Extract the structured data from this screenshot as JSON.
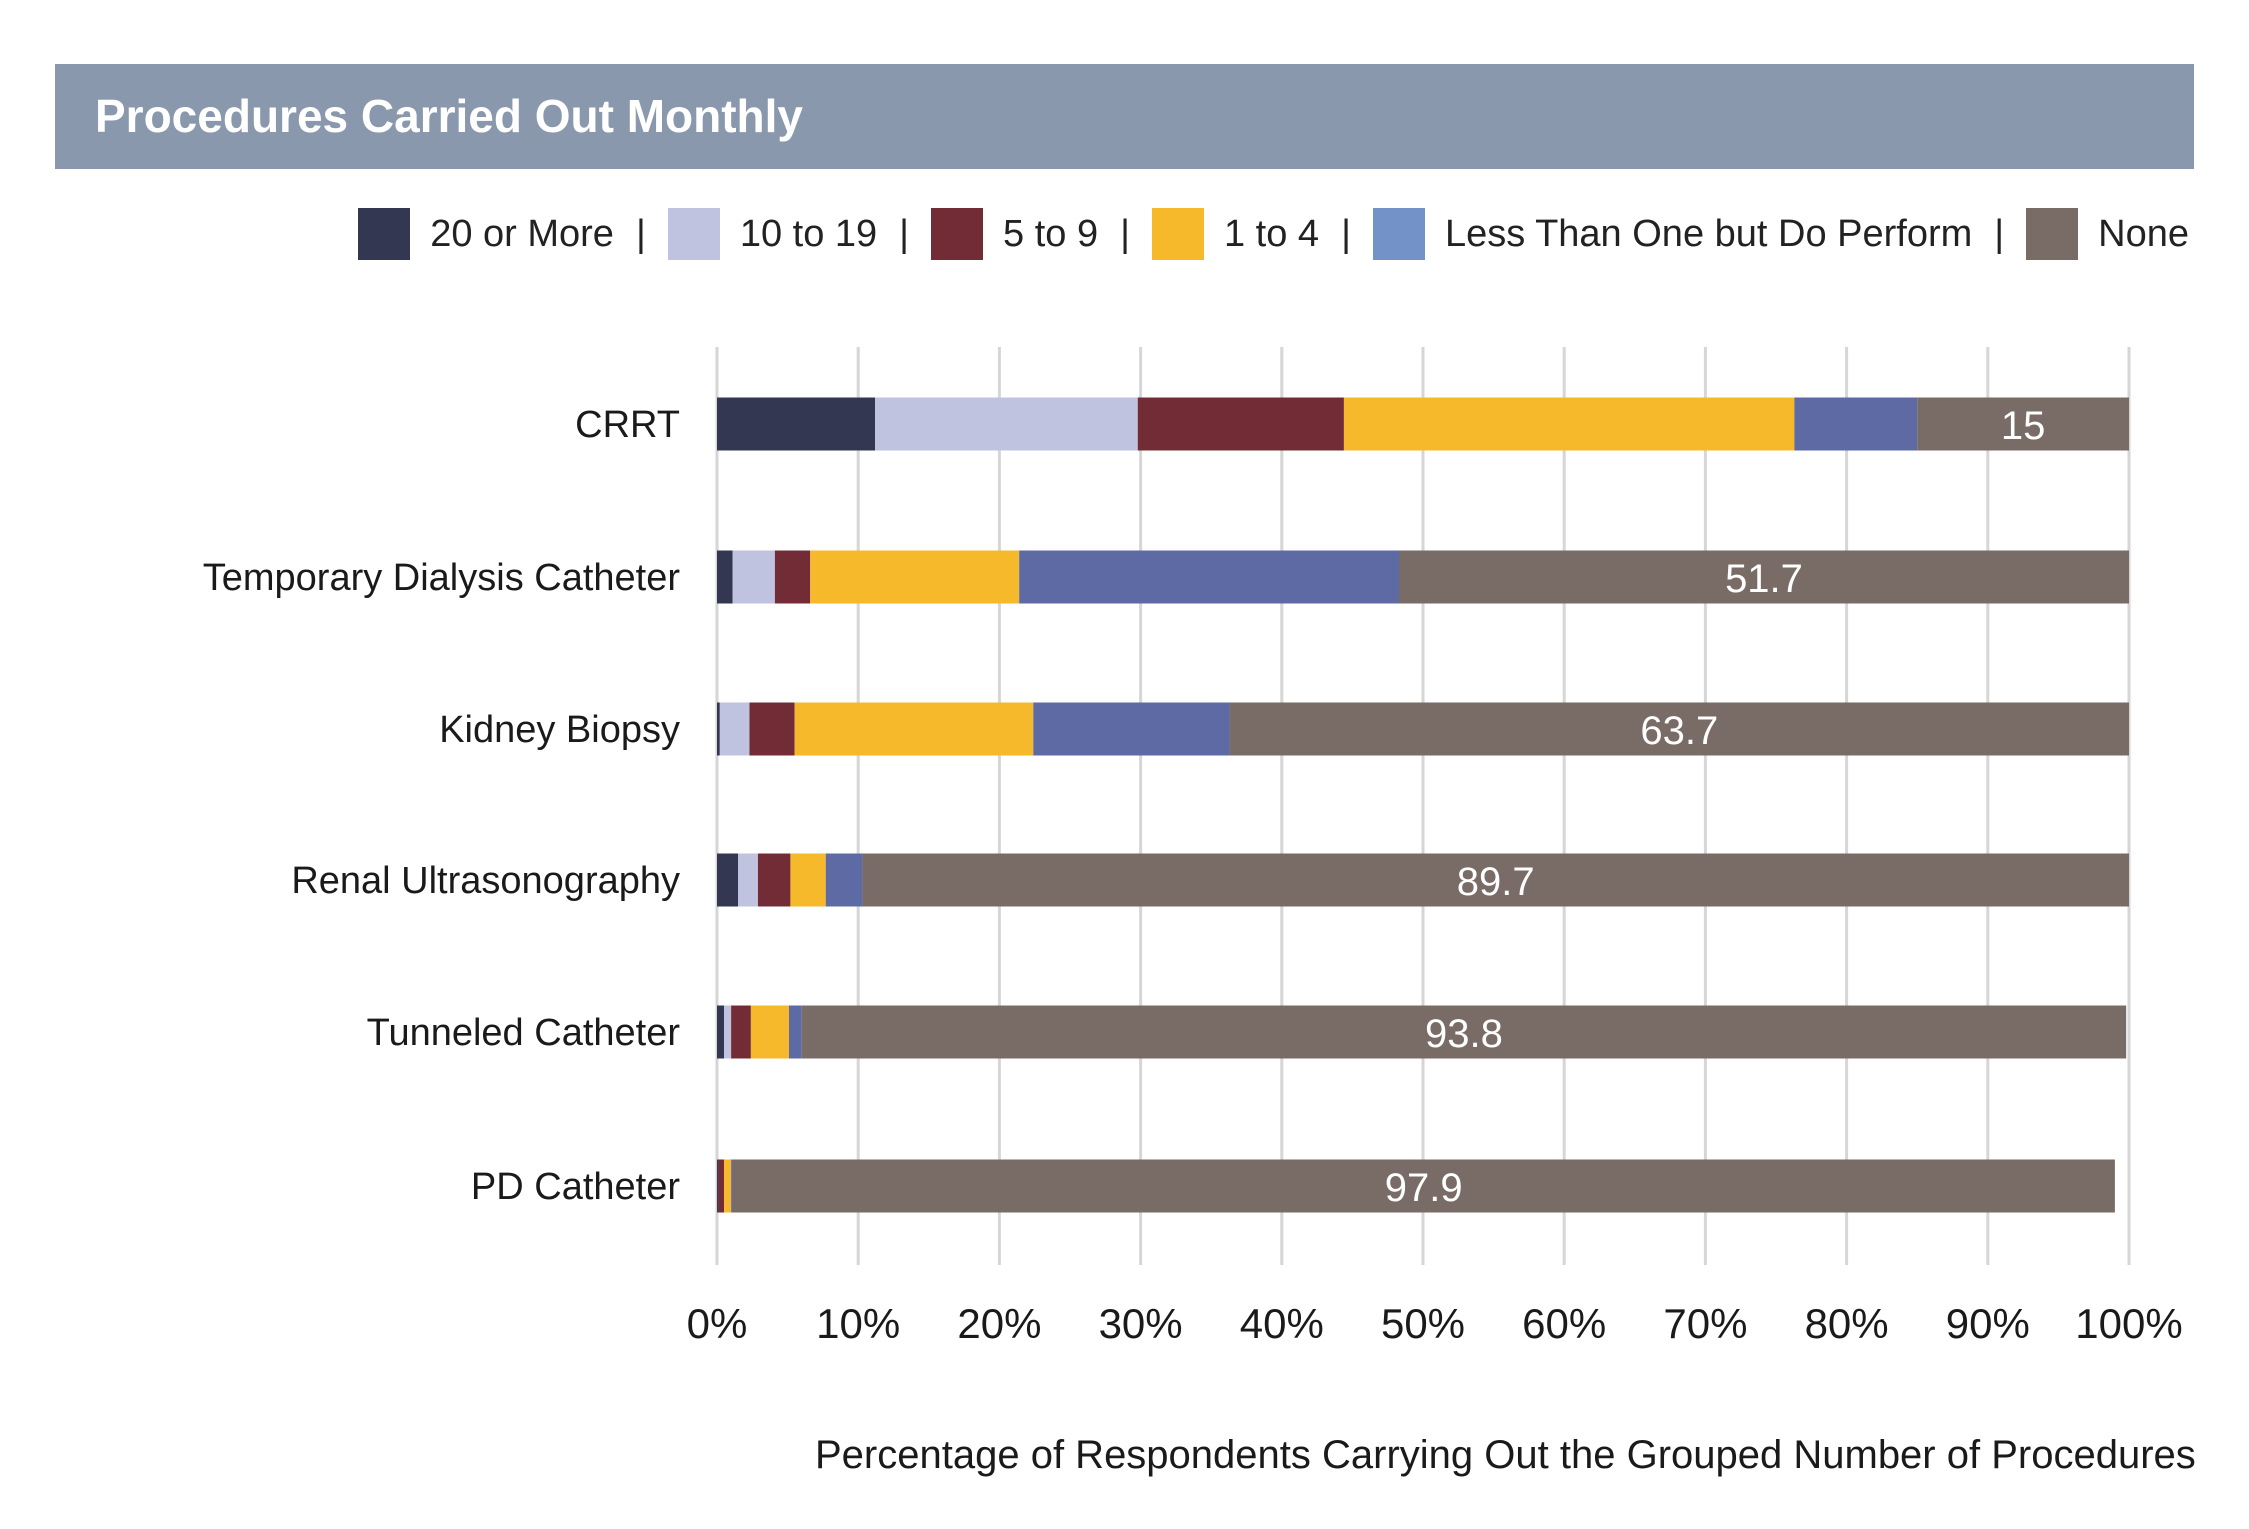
{
  "title": "Procedures Carried Out Monthly",
  "legend_separator": "|",
  "chart_data": {
    "type": "bar",
    "orientation": "horizontal",
    "stacked": true,
    "title": "Procedures Carried Out Monthly",
    "xlabel": "Percentage of Respondents Carrying Out the Grouped Number of Procedures",
    "ylabel": "",
    "xlim": [
      0,
      100
    ],
    "x_ticks": [
      "0%",
      "10%",
      "20%",
      "30%",
      "40%",
      "50%",
      "60%",
      "70%",
      "80%",
      "90%",
      "100%"
    ],
    "grid": "vertical",
    "legend_position": "top-right",
    "categories": [
      "CRRT",
      "Temporary Dialysis Catheter",
      "Kidney Biopsy",
      "Renal Ultrasonography",
      "Tunneled Catheter",
      "PD Catheter"
    ],
    "series": [
      {
        "name": "20 or More",
        "color": "#343752",
        "values": [
          11.2,
          1.1,
          0.2,
          1.5,
          0.5,
          0.1
        ]
      },
      {
        "name": "10 to 19",
        "color": "#c0c3df",
        "values": [
          18.6,
          3.0,
          2.1,
          1.4,
          0.5,
          0.0
        ]
      },
      {
        "name": "5 to 9",
        "color": "#722c35",
        "values": [
          14.6,
          2.5,
          3.2,
          2.3,
          1.4,
          0.4
        ]
      },
      {
        "name": "1 to 4",
        "color": "#f6b92b",
        "values": [
          31.9,
          14.8,
          16.9,
          2.5,
          2.7,
          0.5
        ]
      },
      {
        "name": "Less Than One but Do Perform",
        "color": "#5d6aa3",
        "values": [
          8.7,
          26.9,
          13.9,
          2.6,
          0.9,
          0.1
        ]
      },
      {
        "name": "None",
        "color": "#796b66",
        "values": [
          15,
          51.7,
          63.7,
          89.7,
          93.8,
          97.9
        ]
      }
    ],
    "data_labels": [
      "15",
      "51.7",
      "63.7",
      "89.7",
      "93.8",
      "97.9"
    ]
  },
  "legend_colors": [
    "#343752",
    "#c0c3df",
    "#722c35",
    "#f6b92b",
    "#7393c8",
    "#796b66"
  ]
}
